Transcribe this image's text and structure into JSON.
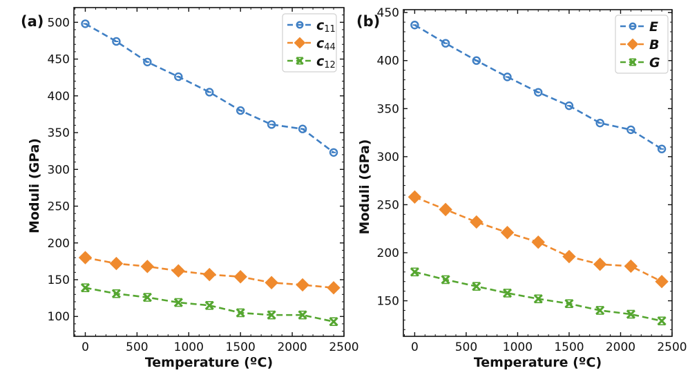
{
  "chart_data": [
    {
      "type": "line",
      "panel_label": "(a)",
      "title": "",
      "xlabel": "Temperature (ºC)",
      "ylabel": "Moduli (GPa)",
      "xlim": [
        -110,
        2500
      ],
      "ylim": [
        73,
        520
      ],
      "xticks": [
        0,
        500,
        1000,
        1500,
        2000,
        2500
      ],
      "xtick_labels": [
        "0",
        "500",
        "1000",
        "1500",
        "2000",
        "2500"
      ],
      "yticks": [
        100,
        150,
        200,
        250,
        300,
        350,
        400,
        450,
        500
      ],
      "ytick_labels": [
        "100",
        "150",
        "200",
        "250",
        "300",
        "350",
        "400",
        "450",
        "500"
      ],
      "grid": false,
      "legend_position": "top-right",
      "x": [
        0,
        300,
        600,
        900,
        1200,
        1500,
        1800,
        2100,
        2400
      ],
      "series": [
        {
          "name": "c11",
          "label_main": "c",
          "label_sub": "11",
          "marker": "circle",
          "color": "#3f7fc4",
          "values": [
            498,
            474,
            446,
            426,
            405,
            380,
            361,
            355,
            323
          ]
        },
        {
          "name": "c44",
          "label_main": "c",
          "label_sub": "44",
          "marker": "diamond",
          "color": "#ef8a2e",
          "values": [
            180,
            172,
            168,
            162,
            157,
            154,
            146,
            143,
            139
          ]
        },
        {
          "name": "c12",
          "label_main": "c",
          "label_sub": "12",
          "marker": "x",
          "color": "#55a630",
          "values": [
            139,
            131,
            126,
            119,
            115,
            105,
            102,
            102,
            93
          ]
        }
      ]
    },
    {
      "type": "line",
      "panel_label": "(b)",
      "title": "",
      "xlabel": "Temperature (ºC)",
      "ylabel": "Moduli (GPa)",
      "xlim": [
        -110,
        2500
      ],
      "ylim": [
        113,
        453
      ],
      "xticks": [
        0,
        500,
        1000,
        1500,
        2000,
        2500
      ],
      "xtick_labels": [
        "0",
        "500",
        "1000",
        "1500",
        "2000",
        "2500"
      ],
      "yticks": [
        150,
        200,
        250,
        300,
        350,
        400,
        450
      ],
      "ytick_labels": [
        "150",
        "200",
        "250",
        "300",
        "350",
        "400",
        "450"
      ],
      "grid": false,
      "legend_position": "top-right",
      "x": [
        0,
        300,
        600,
        900,
        1200,
        1500,
        1800,
        2100,
        2400
      ],
      "series": [
        {
          "name": "E",
          "label_main": "E",
          "label_sub": "",
          "marker": "circle",
          "color": "#3f7fc4",
          "values": [
            437,
            418,
            400,
            383,
            367,
            353,
            335,
            328,
            308
          ]
        },
        {
          "name": "B",
          "label_main": "B",
          "label_sub": "",
          "marker": "diamond",
          "color": "#ef8a2e",
          "values": [
            258,
            245,
            232,
            221,
            211,
            196,
            188,
            186,
            170
          ]
        },
        {
          "name": "G",
          "label_main": "G",
          "label_sub": "",
          "marker": "x",
          "color": "#55a630",
          "values": [
            180,
            172,
            165,
            158,
            152,
            147,
            140,
            136,
            129
          ]
        }
      ]
    }
  ]
}
